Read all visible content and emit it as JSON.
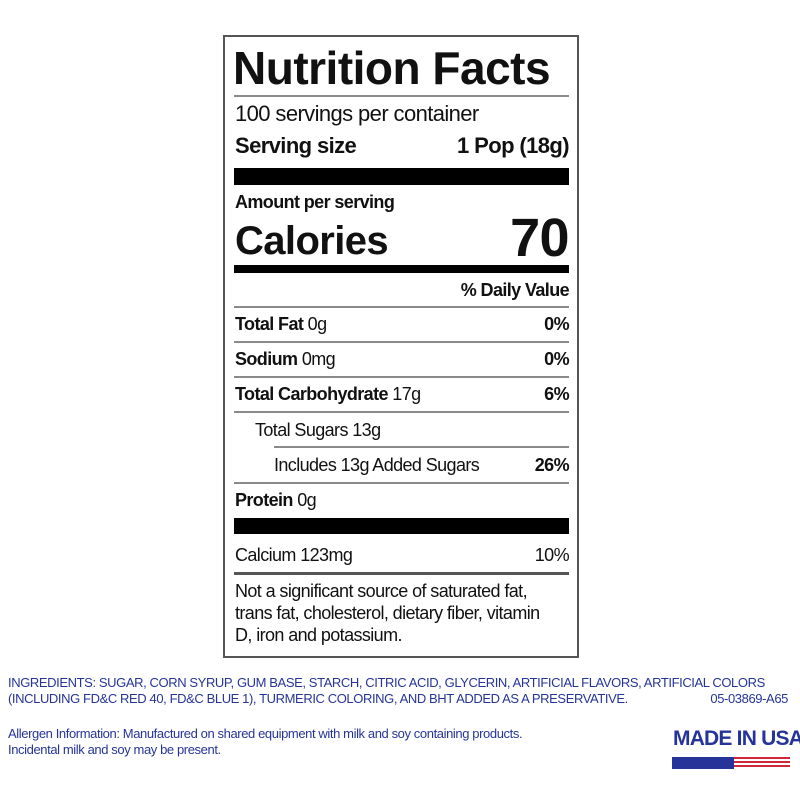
{
  "label": {
    "title": "Nutrition Facts",
    "servings_per_container": "100 servings per container",
    "serving_size_label": "Serving size",
    "serving_size_value": "1 Pop (18g)",
    "amount_per_serving": "Amount per serving",
    "calories_label": "Calories",
    "calories_value": "70",
    "daily_value_header": "% Daily Value",
    "nutrients": [
      {
        "name": "Total Fat",
        "amount": "0g",
        "dv": "0%"
      },
      {
        "name": "Sodium",
        "amount": "0mg",
        "dv": "0%"
      },
      {
        "name": "Total Carbohydrate",
        "amount": "17g",
        "dv": "6%"
      },
      {
        "name": "Total Sugars 13g"
      },
      {
        "name": "Includes 13g Added Sugars",
        "dv": "26%"
      },
      {
        "name": "Protein",
        "amount": "0g"
      }
    ],
    "calcium": {
      "name": "Calcium 123mg",
      "dv": "10%"
    },
    "footnote": [
      "Not a significant source of saturated fat,",
      "trans fat, cholesterol, dietary fiber, vitamin",
      "D, iron and potassium."
    ]
  },
  "ingredients": {
    "line1": "INGREDIENTS: SUGAR, CORN SYRUP, GUM BASE, STARCH, CITRIC ACID, GLYCERIN, ARTIFICIAL FLAVORS, ARTIFICIAL COLORS",
    "line2": "(INCLUDING FD&C RED 40, FD&C BLUE 1), TURMERIC COLORING, AND BHT ADDED AS A PRESERVATIVE.",
    "code": "05-03869-A65"
  },
  "allergen": {
    "line1": "Allergen Information: Manufactured on shared equipment with milk and soy containing products.",
    "line2": "Incidental milk and soy may be present."
  },
  "badge": {
    "text": "MADE IN USA",
    "colors": {
      "blue": "#26349a",
      "red": "#d0283a"
    }
  }
}
